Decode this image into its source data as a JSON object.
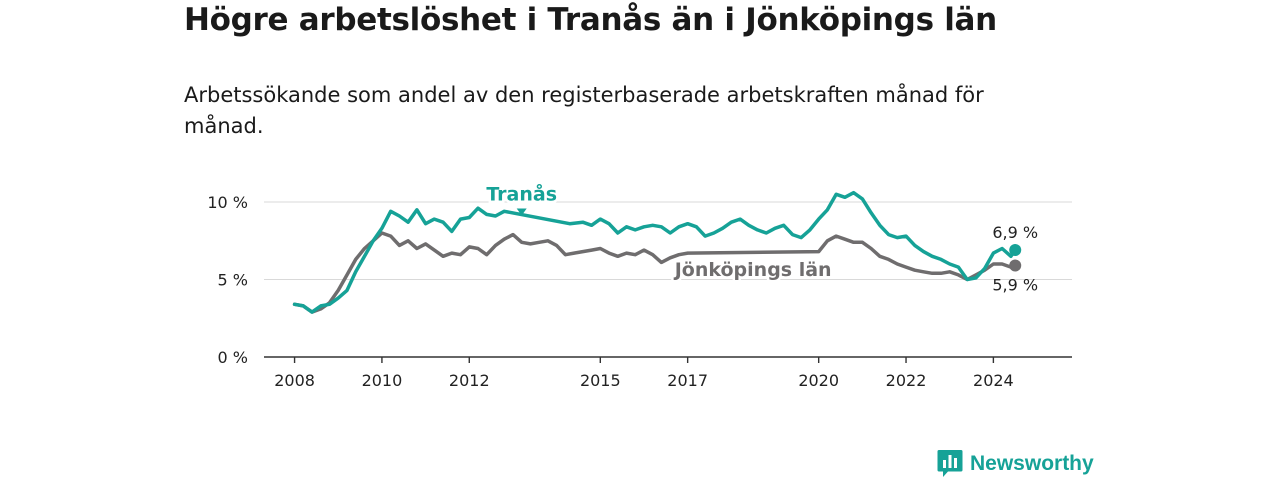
{
  "title": "Högre arbetslöshet i Tranås än i Jönköpings län",
  "subtitle": "Arbetssökande som andel av den registerbaserade arbetskraften månad för månad.",
  "brand": {
    "name": "Newsworthy",
    "color": "#16a297"
  },
  "chart_data": {
    "type": "line",
    "title": "Högre arbetslöshet i Tranås än i Jönköpings län",
    "subtitle": "Arbetssökande som andel av den registerbaserade arbetskraften månad för månad.",
    "xlabel": "",
    "ylabel": "",
    "ylim": [
      0,
      10
    ],
    "xlim": [
      2007.3,
      2025.8
    ],
    "yticks": [
      {
        "value": 0,
        "label": "0 %"
      },
      {
        "value": 5,
        "label": "5 %"
      },
      {
        "value": 10,
        "label": "10 %"
      }
    ],
    "xticks": [
      {
        "value": 2008,
        "label": "2008"
      },
      {
        "value": 2010,
        "label": "2010"
      },
      {
        "value": 2012,
        "label": "2012"
      },
      {
        "value": 2015,
        "label": "2015"
      },
      {
        "value": 2017,
        "label": "2017"
      },
      {
        "value": 2020,
        "label": "2020"
      },
      {
        "value": 2022,
        "label": "2022"
      },
      {
        "value": 2024,
        "label": "2024"
      }
    ],
    "grid": true,
    "series": [
      {
        "name": "Tranås",
        "color": "#16a297",
        "end_label": "6,9 %",
        "points": [
          [
            2008.0,
            3.4
          ],
          [
            2008.2,
            3.3
          ],
          [
            2008.4,
            2.9
          ],
          [
            2008.6,
            3.3
          ],
          [
            2008.8,
            3.4
          ],
          [
            2009.0,
            3.8
          ],
          [
            2009.2,
            4.3
          ],
          [
            2009.4,
            5.5
          ],
          [
            2009.6,
            6.5
          ],
          [
            2009.8,
            7.5
          ],
          [
            2010.0,
            8.3
          ],
          [
            2010.2,
            9.4
          ],
          [
            2010.4,
            9.1
          ],
          [
            2010.6,
            8.7
          ],
          [
            2010.8,
            9.5
          ],
          [
            2011.0,
            8.6
          ],
          [
            2011.2,
            8.9
          ],
          [
            2011.4,
            8.7
          ],
          [
            2011.6,
            8.1
          ],
          [
            2011.8,
            8.9
          ],
          [
            2012.0,
            9.0
          ],
          [
            2012.2,
            9.6
          ],
          [
            2012.4,
            9.2
          ],
          [
            2012.6,
            9.1
          ],
          [
            2012.8,
            9.4
          ],
          [
            2014.3,
            8.6
          ],
          [
            2014.6,
            8.7
          ],
          [
            2014.8,
            8.5
          ],
          [
            2015.0,
            8.9
          ],
          [
            2015.2,
            8.6
          ],
          [
            2015.4,
            8.0
          ],
          [
            2015.6,
            8.4
          ],
          [
            2015.8,
            8.2
          ],
          [
            2016.0,
            8.4
          ],
          [
            2016.2,
            8.5
          ],
          [
            2016.4,
            8.4
          ],
          [
            2016.6,
            8.0
          ],
          [
            2016.8,
            8.4
          ],
          [
            2017.0,
            8.6
          ],
          [
            2017.2,
            8.4
          ],
          [
            2017.4,
            7.8
          ],
          [
            2017.6,
            8.0
          ],
          [
            2017.8,
            8.3
          ],
          [
            2018.0,
            8.7
          ],
          [
            2018.2,
            8.9
          ],
          [
            2018.4,
            8.5
          ],
          [
            2018.6,
            8.2
          ],
          [
            2018.8,
            8.0
          ],
          [
            2019.0,
            8.3
          ],
          [
            2019.2,
            8.5
          ],
          [
            2019.4,
            7.9
          ],
          [
            2019.6,
            7.7
          ],
          [
            2019.8,
            8.2
          ],
          [
            2020.0,
            8.9
          ],
          [
            2020.2,
            9.5
          ],
          [
            2020.4,
            10.5
          ],
          [
            2020.6,
            10.3
          ],
          [
            2020.8,
            10.6
          ],
          [
            2021.0,
            10.2
          ],
          [
            2021.2,
            9.3
          ],
          [
            2021.4,
            8.5
          ],
          [
            2021.6,
            7.9
          ],
          [
            2021.8,
            7.7
          ],
          [
            2022.0,
            7.8
          ],
          [
            2022.2,
            7.2
          ],
          [
            2022.4,
            6.8
          ],
          [
            2022.6,
            6.5
          ],
          [
            2022.8,
            6.3
          ],
          [
            2023.0,
            6.0
          ],
          [
            2023.2,
            5.8
          ],
          [
            2023.4,
            5.0
          ],
          [
            2023.6,
            5.1
          ],
          [
            2023.8,
            5.7
          ],
          [
            2024.0,
            6.7
          ],
          [
            2024.2,
            7.0
          ],
          [
            2024.4,
            6.5
          ],
          [
            2024.5,
            6.9
          ]
        ]
      },
      {
        "name": "Jönköpings län",
        "color": "#6f6d6e",
        "end_label": "5,9 %",
        "points": [
          [
            2008.0,
            3.4
          ],
          [
            2008.2,
            3.3
          ],
          [
            2008.4,
            2.9
          ],
          [
            2008.6,
            3.1
          ],
          [
            2008.8,
            3.5
          ],
          [
            2009.0,
            4.3
          ],
          [
            2009.2,
            5.3
          ],
          [
            2009.4,
            6.3
          ],
          [
            2009.6,
            7.0
          ],
          [
            2009.8,
            7.5
          ],
          [
            2010.0,
            8.0
          ],
          [
            2010.2,
            7.8
          ],
          [
            2010.4,
            7.2
          ],
          [
            2010.6,
            7.5
          ],
          [
            2010.8,
            7.0
          ],
          [
            2011.0,
            7.3
          ],
          [
            2011.2,
            6.9
          ],
          [
            2011.4,
            6.5
          ],
          [
            2011.6,
            6.7
          ],
          [
            2011.8,
            6.6
          ],
          [
            2012.0,
            7.1
          ],
          [
            2012.2,
            7.0
          ],
          [
            2012.4,
            6.6
          ],
          [
            2012.6,
            7.2
          ],
          [
            2012.8,
            7.6
          ],
          [
            2013.0,
            7.9
          ],
          [
            2013.2,
            7.4
          ],
          [
            2013.4,
            7.3
          ],
          [
            2013.6,
            7.4
          ],
          [
            2013.8,
            7.5
          ],
          [
            2014.0,
            7.2
          ],
          [
            2014.2,
            6.6
          ],
          [
            2014.4,
            6.7
          ],
          [
            2014.6,
            6.8
          ],
          [
            2014.8,
            6.9
          ],
          [
            2015.0,
            7.0
          ],
          [
            2015.2,
            6.7
          ],
          [
            2015.4,
            6.5
          ],
          [
            2015.6,
            6.7
          ],
          [
            2015.8,
            6.6
          ],
          [
            2016.0,
            6.9
          ],
          [
            2016.2,
            6.6
          ],
          [
            2016.4,
            6.1
          ],
          [
            2016.6,
            6.4
          ],
          [
            2016.8,
            6.6
          ],
          [
            2017.0,
            6.7
          ],
          [
            2020.0,
            6.8
          ],
          [
            2020.2,
            7.5
          ],
          [
            2020.4,
            7.8
          ],
          [
            2020.6,
            7.6
          ],
          [
            2020.8,
            7.4
          ],
          [
            2021.0,
            7.4
          ],
          [
            2021.2,
            7.0
          ],
          [
            2021.4,
            6.5
          ],
          [
            2021.6,
            6.3
          ],
          [
            2021.8,
            6.0
          ],
          [
            2022.0,
            5.8
          ],
          [
            2022.2,
            5.6
          ],
          [
            2022.4,
            5.5
          ],
          [
            2022.6,
            5.4
          ],
          [
            2022.8,
            5.4
          ],
          [
            2023.0,
            5.5
          ],
          [
            2023.2,
            5.3
          ],
          [
            2023.4,
            5.0
          ],
          [
            2023.6,
            5.3
          ],
          [
            2023.8,
            5.6
          ],
          [
            2024.0,
            6.0
          ],
          [
            2024.2,
            6.0
          ],
          [
            2024.4,
            5.8
          ],
          [
            2024.5,
            5.9
          ]
        ]
      }
    ],
    "annotations": [
      {
        "series": "Tranås",
        "text": "Tranås",
        "x": 2013.2,
        "y": 10.1
      },
      {
        "series": "Jönköpings län",
        "text": "Jönköpings län",
        "x": 2018.5,
        "y": 5.5
      }
    ]
  }
}
